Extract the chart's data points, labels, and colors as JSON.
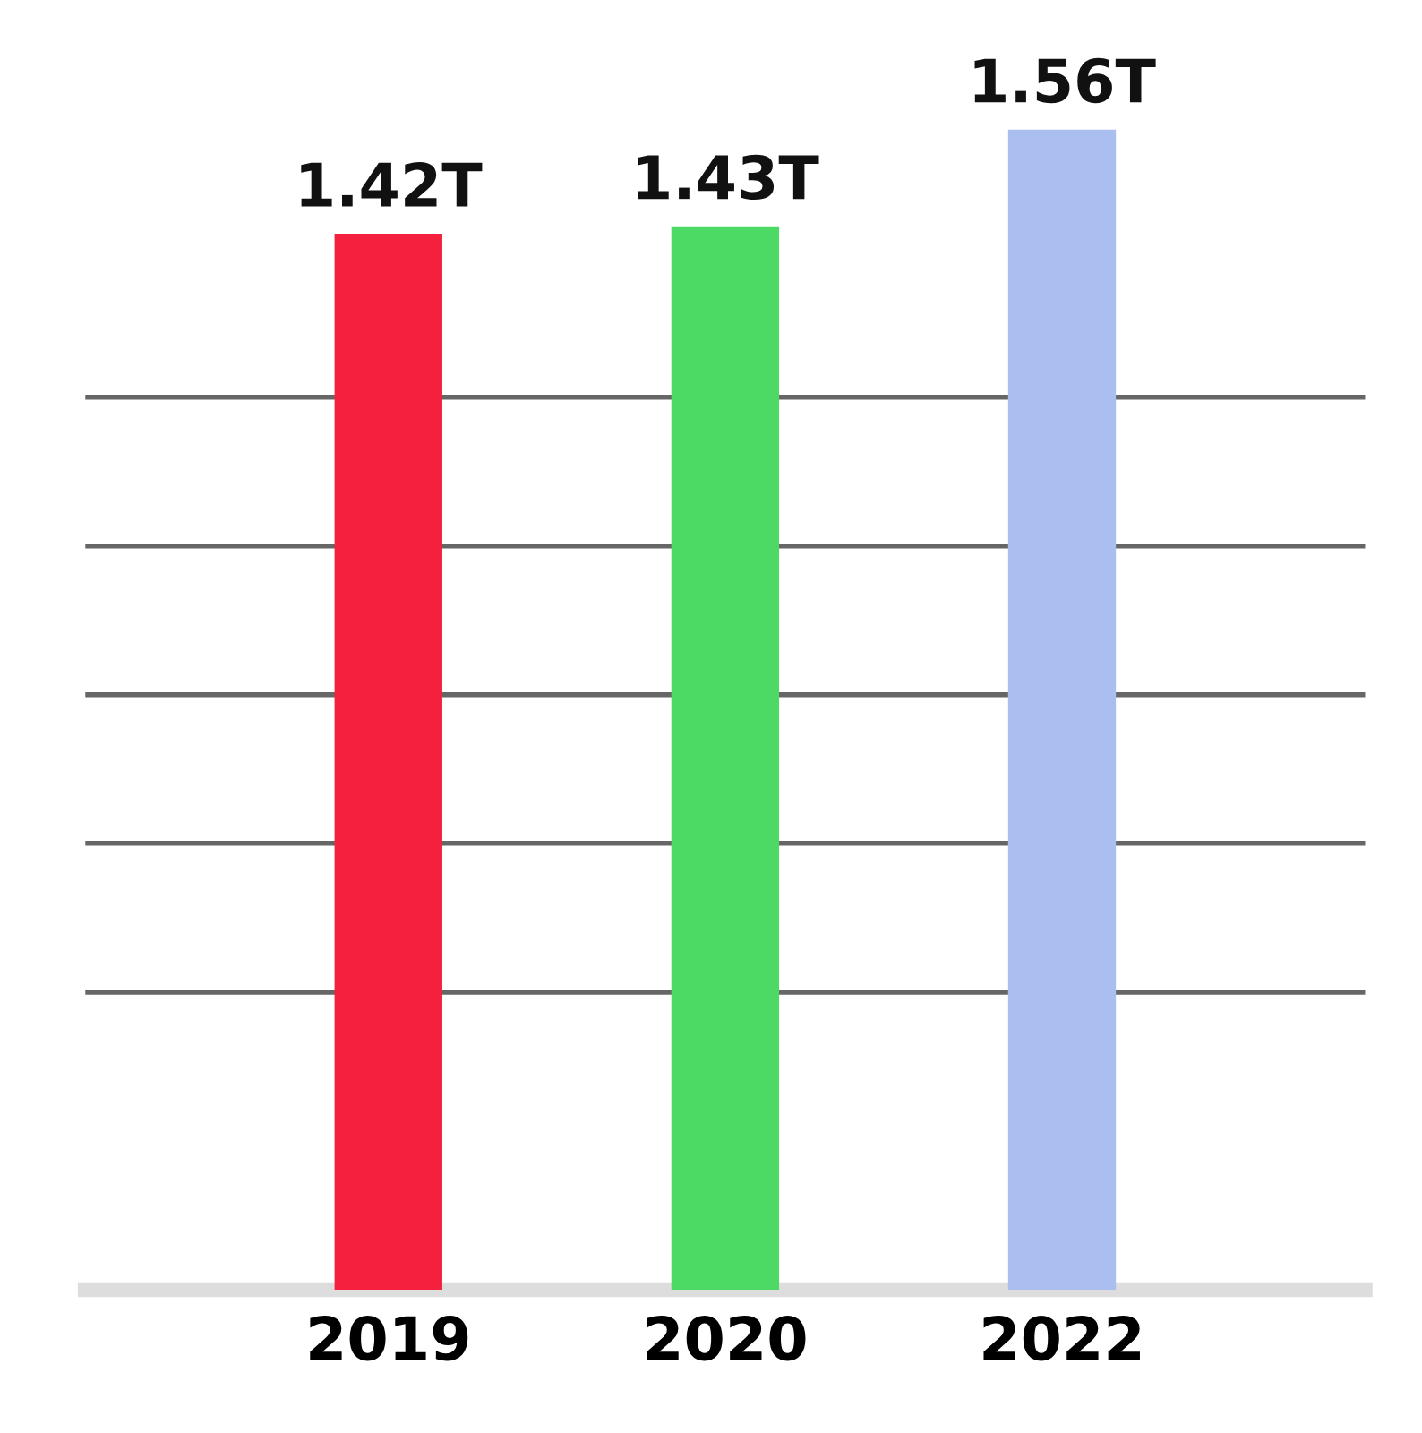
{
  "chart_data": {
    "type": "bar",
    "categories": [
      "2019",
      "2020",
      "2022"
    ],
    "values": [
      1.42,
      1.43,
      1.56
    ],
    "value_labels": [
      "1.42T",
      "1.43T",
      "1.56T"
    ],
    "colors": [
      "#f5203e",
      "#4cd964",
      "#aabff0"
    ],
    "yticks": [
      {
        "value": 0.4,
        "label": null
      },
      {
        "value": 0.6,
        "label": null
      },
      {
        "value": 0.8,
        "label": null
      },
      {
        "value": 1.0,
        "label": null
      },
      {
        "value": 1.2,
        "label": null
      }
    ],
    "grid": "y"
  }
}
